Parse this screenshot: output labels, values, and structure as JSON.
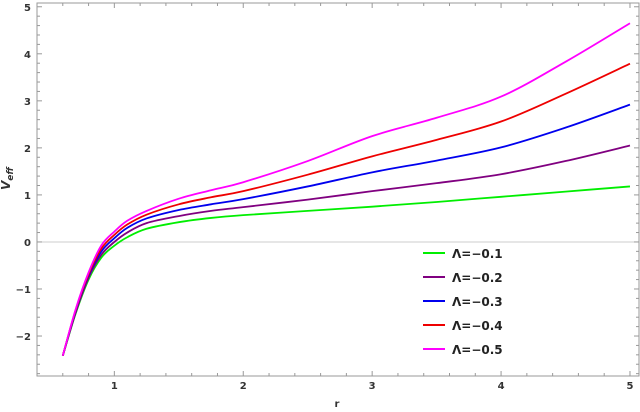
{
  "chart_data": {
    "type": "line",
    "xlabel": "r",
    "ylabel_main": "V",
    "ylabel_sub": "eff",
    "xlim": [
      0.4,
      5.07
    ],
    "ylim": [
      -2.85,
      5.08
    ],
    "xticks": [
      1,
      2,
      3,
      4,
      5
    ],
    "yticks": [
      -2,
      -1,
      0,
      1,
      2,
      3,
      4,
      5
    ],
    "grid": false,
    "frame": true,
    "zero_line": true,
    "legend_position": "bottom-right",
    "x": [
      0.6,
      0.7,
      0.8,
      0.9,
      1.0,
      1.1,
      1.25,
      1.5,
      1.75,
      2,
      2.5,
      3,
      3.5,
      4,
      4.5,
      5
    ],
    "series": [
      {
        "name": "Λ=−0.1",
        "color": "#00ee00",
        "values": [
          -2.42,
          -1.52,
          -0.8,
          -0.33,
          -0.08,
          0.1,
          0.28,
          0.42,
          0.51,
          0.57,
          0.66,
          0.75,
          0.85,
          0.96,
          1.07,
          1.18
        ]
      },
      {
        "name": "Λ=−0.2",
        "color": "#800080",
        "values": [
          -2.42,
          -1.5,
          -0.76,
          -0.27,
          0.0,
          0.2,
          0.4,
          0.55,
          0.66,
          0.74,
          0.9,
          1.08,
          1.25,
          1.44,
          1.72,
          2.05
        ]
      },
      {
        "name": "Λ=−0.3",
        "color": "#0000ee",
        "values": [
          -2.42,
          -1.47,
          -0.72,
          -0.2,
          0.08,
          0.3,
          0.5,
          0.68,
          0.8,
          0.91,
          1.18,
          1.48,
          1.73,
          2.01,
          2.43,
          2.92
        ]
      },
      {
        "name": "Λ=−0.4",
        "color": "#ee0000",
        "values": [
          -2.42,
          -1.45,
          -0.69,
          -0.14,
          0.15,
          0.37,
          0.58,
          0.8,
          0.95,
          1.08,
          1.43,
          1.82,
          2.17,
          2.56,
          3.15,
          3.79
        ]
      },
      {
        "name": "Λ=−0.5",
        "color": "#ff00ff",
        "values": [
          -2.42,
          -1.43,
          -0.65,
          -0.07,
          0.22,
          0.45,
          0.66,
          0.92,
          1.1,
          1.27,
          1.72,
          2.25,
          2.64,
          3.09,
          3.83,
          4.65
        ]
      }
    ]
  }
}
